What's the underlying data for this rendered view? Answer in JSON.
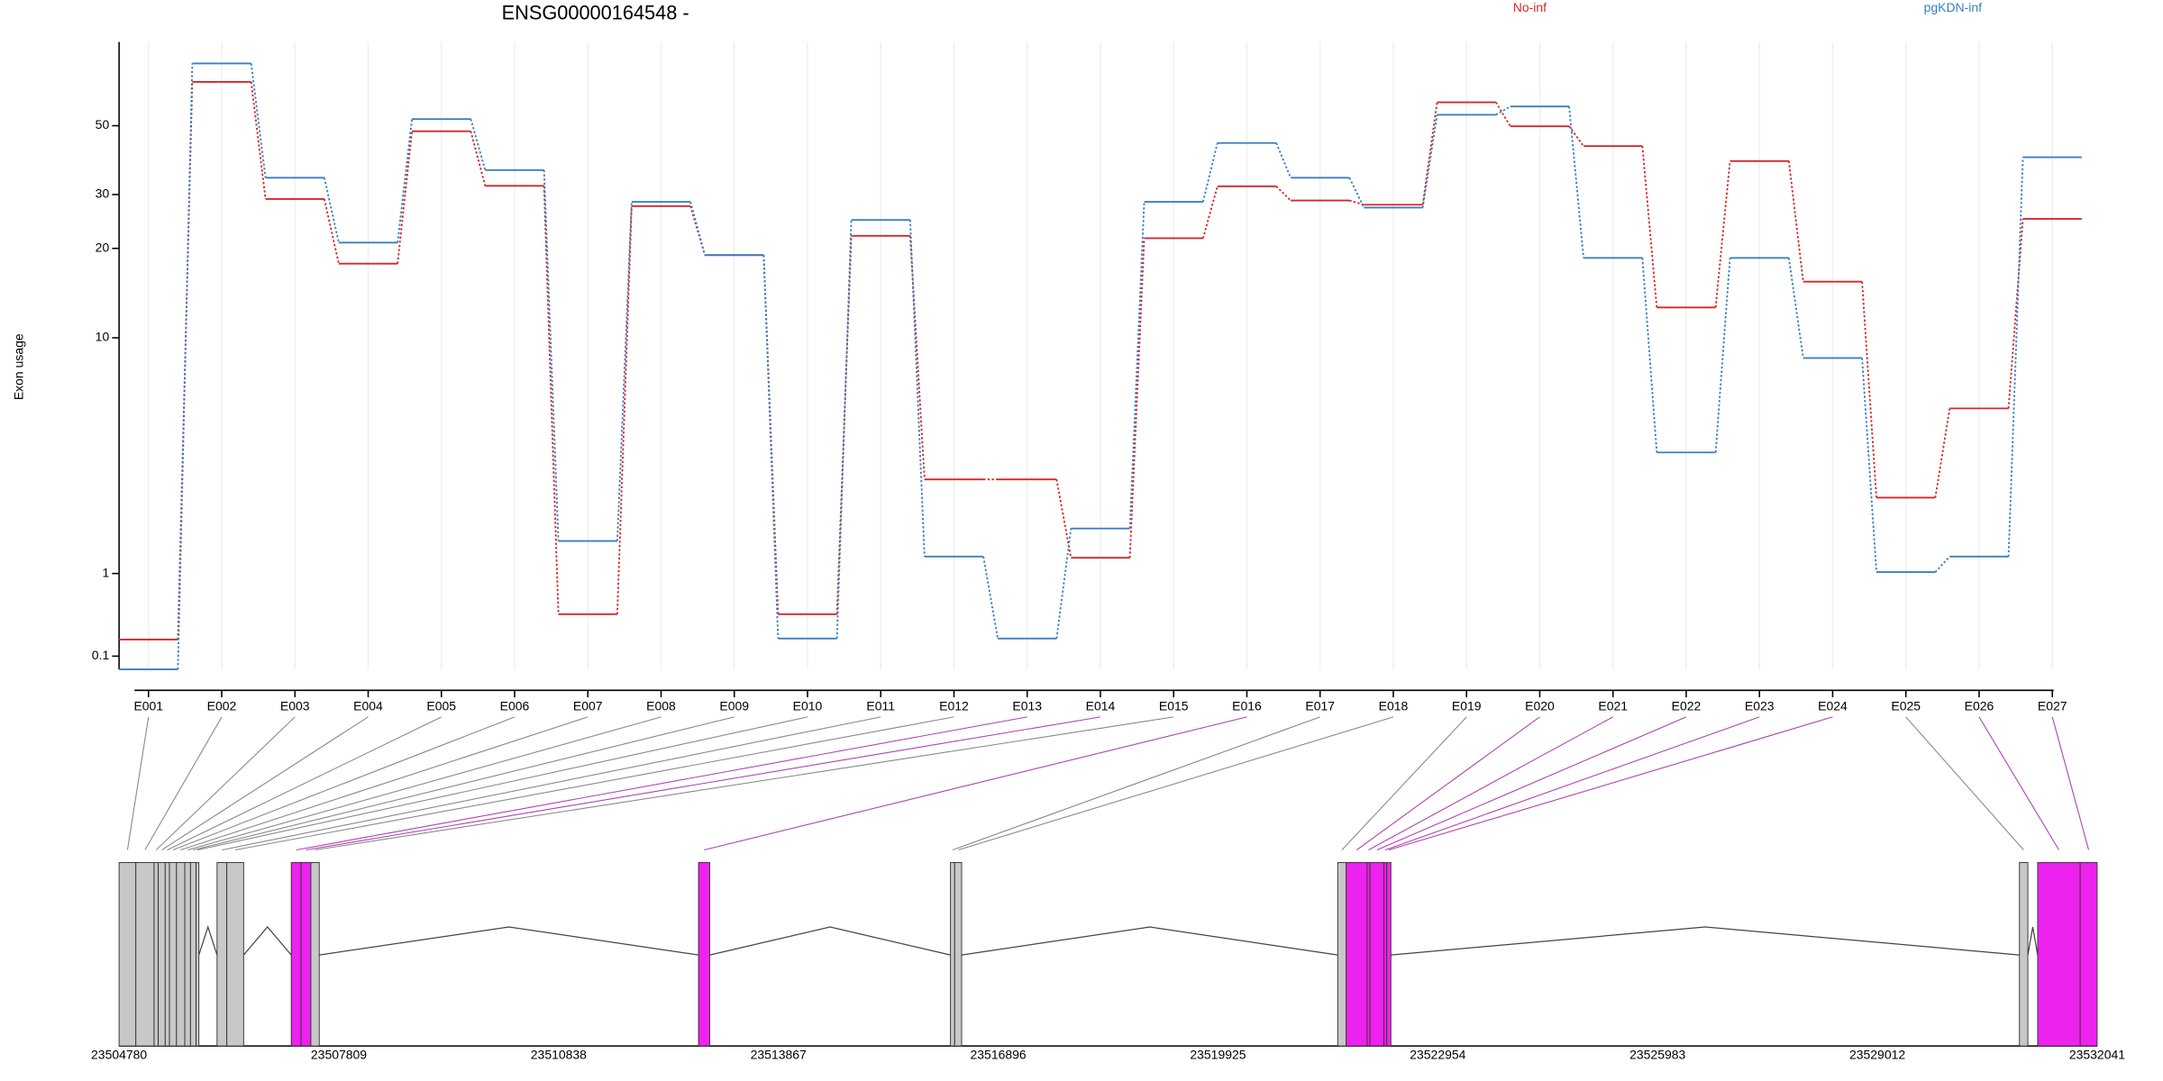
{
  "chart_data": {
    "type": "line",
    "title": "ENSG00000164548 -",
    "ylabel": "Exon usage",
    "scale": "log1p",
    "ylim": [
      0,
      90
    ],
    "yticks": [
      0.1,
      1,
      10,
      20,
      30,
      50
    ],
    "grid": true,
    "categories": [
      "E001",
      "E002",
      "E003",
      "E004",
      "E005",
      "E006",
      "E007",
      "E008",
      "E009",
      "E010",
      "E011",
      "E012",
      "E013",
      "E014",
      "E015",
      "E016",
      "E017",
      "E018",
      "E019",
      "E020",
      "E021",
      "E022",
      "E023",
      "E024",
      "E025",
      "E026",
      "E027"
    ],
    "series": [
      {
        "name": "No-inf",
        "color": "#d62728",
        "values": [
          0.24,
          69,
          29,
          17.8,
          48,
          32,
          0.49,
          27.5,
          19,
          0.49,
          22,
          2.95,
          2.95,
          1.24,
          21.6,
          31.9,
          28.7,
          27.8,
          59.4,
          49.8,
          43,
          12.7,
          38.5,
          15.5,
          2.46,
          5.6,
          25
        ]
      },
      {
        "name": "pgKDN-inf",
        "color": "#3a7fc1",
        "values": [
          0,
          79,
          34,
          20.9,
          52.5,
          36,
          1.53,
          28.4,
          19,
          0.25,
          24.8,
          1.26,
          0.25,
          1.77,
          28.4,
          44,
          34,
          27.2,
          54.2,
          57.6,
          18.6,
          3.8,
          18.6,
          8.5,
          1.02,
          1.26,
          39.6
        ]
      }
    ],
    "gene_model": {
      "xlim": [
        23504780,
        23532041
      ],
      "xticks": [
        23504780,
        23507809,
        23510838,
        23513867,
        23516896,
        23519925,
        23522954,
        23525983,
        23529012,
        23532041
      ],
      "exon_color": "#c8c8c8",
      "significant_color": "#ee22ee",
      "exons": [
        {
          "start": 23504780,
          "end": 23505011,
          "significant": false
        },
        {
          "start": 23505011,
          "end": 23505262,
          "significant": false
        },
        {
          "start": 23505262,
          "end": 23505320,
          "significant": false
        },
        {
          "start": 23505320,
          "end": 23505416,
          "significant": false
        },
        {
          "start": 23505416,
          "end": 23505474,
          "significant": false
        },
        {
          "start": 23505474,
          "end": 23505571,
          "significant": false
        },
        {
          "start": 23505571,
          "end": 23505686,
          "significant": false
        },
        {
          "start": 23505686,
          "end": 23505764,
          "significant": false
        },
        {
          "start": 23505764,
          "end": 23505841,
          "significant": false
        },
        {
          "start": 23505841,
          "end": 23505880,
          "significant": false
        },
        {
          "start": 23506130,
          "end": 23506265,
          "significant": false
        },
        {
          "start": 23506265,
          "end": 23506497,
          "significant": false
        },
        {
          "start": 23507153,
          "end": 23507288,
          "significant": true
        },
        {
          "start": 23507288,
          "end": 23507423,
          "significant": true
        },
        {
          "start": 23507423,
          "end": 23507539,
          "significant": false
        },
        {
          "start": 23512766,
          "end": 23512920,
          "significant": true
        },
        {
          "start": 23516238,
          "end": 23516296,
          "significant": false
        },
        {
          "start": 23516296,
          "end": 23516392,
          "significant": false
        },
        {
          "start": 23521575,
          "end": 23521691,
          "significant": false
        },
        {
          "start": 23521691,
          "end": 23521980,
          "significant": true
        },
        {
          "start": 23521980,
          "end": 23522019,
          "significant": true
        },
        {
          "start": 23522019,
          "end": 23522212,
          "significant": true
        },
        {
          "start": 23522212,
          "end": 23522250,
          "significant": true
        },
        {
          "start": 23522250,
          "end": 23522308,
          "significant": true
        },
        {
          "start": 23530970,
          "end": 23531086,
          "significant": false
        },
        {
          "start": 23531221,
          "end": 23531807,
          "significant": true
        },
        {
          "start": 23531807,
          "end": 23532041,
          "significant": true
        }
      ]
    }
  }
}
